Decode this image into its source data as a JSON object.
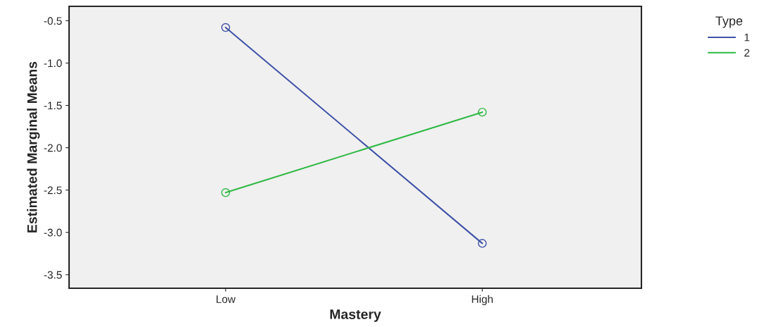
{
  "chart_data": {
    "type": "line",
    "xlabel": "Mastery",
    "ylabel": "Estimated Marginal Means",
    "legend_title": "Type",
    "categories": [
      "Low",
      "High"
    ],
    "series": [
      {
        "name": "1",
        "color": "#3e52a8",
        "values": [
          -0.58,
          -3.13
        ]
      },
      {
        "name": "2",
        "color": "#2fb944",
        "values": [
          -2.53,
          -1.58
        ]
      }
    ],
    "ylim": [
      -3.66,
      -0.33
    ],
    "yticks": [
      -0.5,
      {
        "value": -1,
        "label": "-1.0"
      },
      -1.5,
      {
        "value": -2,
        "label": "-2.0"
      },
      -2.5,
      {
        "value": -3,
        "label": "-3.0"
      },
      -3.5
    ],
    "marker": "circle",
    "line_style": "solid",
    "grid": false,
    "legend": "top right"
  }
}
